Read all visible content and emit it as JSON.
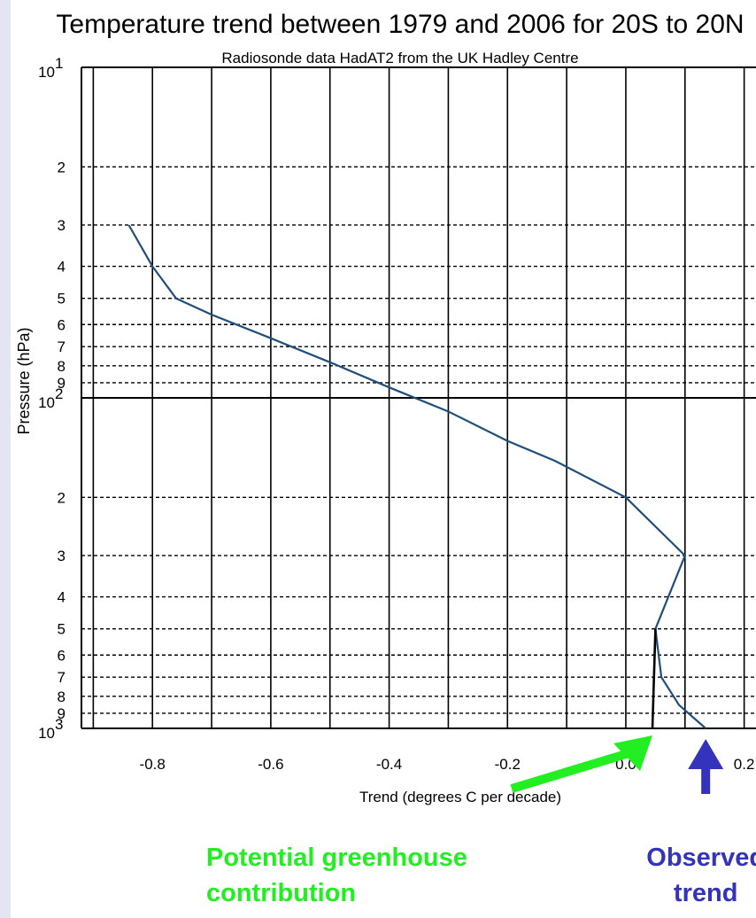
{
  "chart_data": {
    "type": "line",
    "title": "Temperature trend between 1979 and 2006 for 20S to 20N",
    "subtitle": "Radiosonde data HadAT2 from the UK Hadley Centre",
    "xlabel": "Trend (degrees C per decade)",
    "ylabel": "Pressure (hPa)",
    "xlim": [
      -0.92,
      0.22
    ],
    "ylim": [
      1000,
      10
    ],
    "y_scale": "log",
    "y_inverted": true,
    "grid": true,
    "x_ticks": [
      {
        "value": -0.8,
        "label": "-0.8"
      },
      {
        "value": -0.6,
        "label": "-0.6"
      },
      {
        "value": -0.4,
        "label": "-0.4"
      },
      {
        "value": -0.2,
        "label": "-0.2"
      },
      {
        "value": 0.0,
        "label": "0.0"
      },
      {
        "value": 0.2,
        "label": "0.2"
      }
    ],
    "y_ticks": [
      {
        "value": 10,
        "base": "10",
        "exp": "1"
      },
      {
        "value": 20,
        "label": "2"
      },
      {
        "value": 30,
        "label": "3"
      },
      {
        "value": 40,
        "label": "4"
      },
      {
        "value": 50,
        "label": "5"
      },
      {
        "value": 60,
        "label": "6"
      },
      {
        "value": 70,
        "label": "7"
      },
      {
        "value": 80,
        "label": "8"
      },
      {
        "value": 90,
        "label": "9"
      },
      {
        "value": 100,
        "base": "10",
        "exp": "2"
      },
      {
        "value": 200,
        "label": "2"
      },
      {
        "value": 300,
        "label": "3"
      },
      {
        "value": 400,
        "label": "4"
      },
      {
        "value": 500,
        "label": "5"
      },
      {
        "value": 600,
        "label": "6"
      },
      {
        "value": 700,
        "label": "7"
      },
      {
        "value": 800,
        "label": "8"
      },
      {
        "value": 900,
        "label": "9"
      },
      {
        "value": 1000,
        "base": "10",
        "exp": "3"
      }
    ],
    "series": [
      {
        "color": "#1f4e7a",
        "points": [
          {
            "x": -0.84,
            "y": 30
          },
          {
            "x": -0.8,
            "y": 40
          },
          {
            "x": -0.76,
            "y": 50
          },
          {
            "x": -0.7,
            "y": 56
          },
          {
            "x": -0.6,
            "y": 66
          },
          {
            "x": -0.5,
            "y": 78
          },
          {
            "x": -0.4,
            "y": 93
          },
          {
            "x": -0.3,
            "y": 110
          },
          {
            "x": -0.2,
            "y": 135
          },
          {
            "x": -0.12,
            "y": 155
          },
          {
            "x": 0.0,
            "y": 200
          },
          {
            "x": 0.1,
            "y": 300
          },
          {
            "x": 0.05,
            "y": 500
          },
          {
            "x": 0.06,
            "y": 700
          },
          {
            "x": 0.09,
            "y": 850
          },
          {
            "x": 0.135,
            "y": 1000
          }
        ]
      },
      {
        "color": "#000000",
        "points": [
          {
            "x": 0.05,
            "y": 500
          },
          {
            "x": 0.045,
            "y": 1000
          }
        ]
      }
    ],
    "annotations": [
      {
        "lines": [
          "Potential greenhouse",
          "contribution"
        ],
        "color": "#22ee22",
        "arrow_to": {
          "x": 0.045,
          "y": 1000
        }
      },
      {
        "lines": [
          "Observed",
          "trend"
        ],
        "color": "#3333bb",
        "arrow_to": {
          "x": 0.135,
          "y": 1000
        }
      }
    ]
  }
}
